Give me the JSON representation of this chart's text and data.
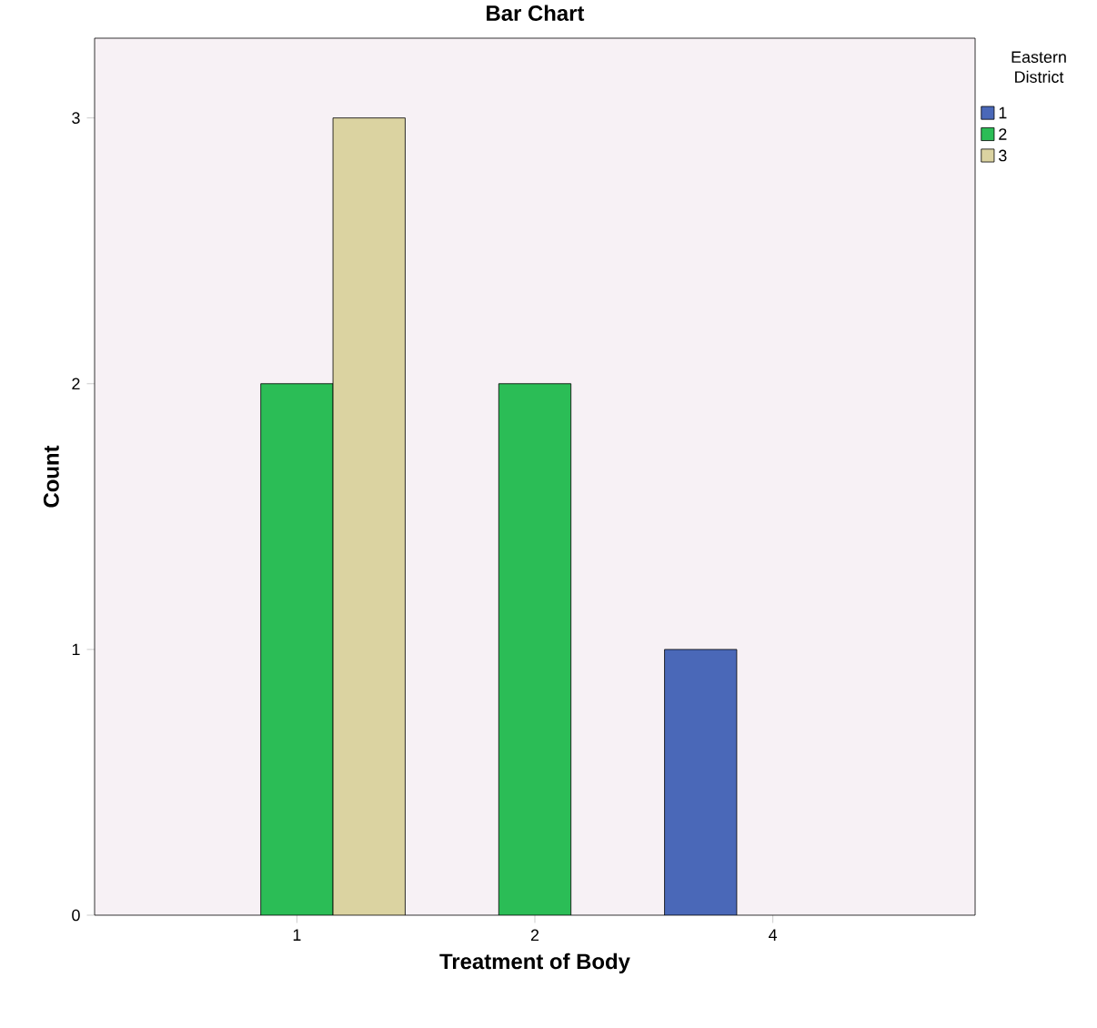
{
  "chart_data": {
    "type": "bar",
    "title": "Bar Chart",
    "xlabel": "Treatment of Body",
    "ylabel": "Count",
    "legend_title": "Eastern District",
    "categories": [
      "1",
      "2",
      "4"
    ],
    "series": [
      {
        "name": "1",
        "color": "#4a68b8",
        "values": [
          null,
          null,
          1
        ]
      },
      {
        "name": "2",
        "color": "#2bbd56",
        "values": [
          2,
          2,
          null
        ]
      },
      {
        "name": "3",
        "color": "#dbd3a1",
        "values": [
          3,
          null,
          null
        ]
      }
    ],
    "ylim": [
      0,
      3.3
    ],
    "yticks": [
      0,
      1,
      2,
      3
    ],
    "legend": "top right",
    "grid": false
  }
}
